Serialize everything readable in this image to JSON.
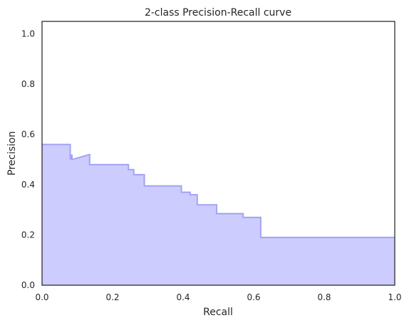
{
  "chart_data": {
    "type": "area",
    "title": "2-class Precision-Recall curve",
    "xlabel": "Recall",
    "ylabel": "Precision",
    "xlim": [
      0.0,
      1.0
    ],
    "ylim": [
      0.0,
      1.05
    ],
    "x_ticks": [
      0.0,
      0.2,
      0.4,
      0.6,
      0.8,
      1.0
    ],
    "y_ticks": [
      0.0,
      0.2,
      0.4,
      0.6,
      0.8,
      1.0
    ],
    "x_tick_labels": [
      "0.0",
      "0.2",
      "0.4",
      "0.6",
      "0.8",
      "1.0"
    ],
    "y_tick_labels": [
      "0.0",
      "0.2",
      "0.4",
      "0.6",
      "0.8",
      "1.0"
    ],
    "grid": false,
    "step": "post",
    "fill_color": "#ccccff",
    "line_color": "#a3a3f5",
    "series": [
      {
        "recall": [
          1.0,
          0.62,
          0.62,
          0.57,
          0.57,
          0.495,
          0.495,
          0.44,
          0.44,
          0.42,
          0.42,
          0.395,
          0.395,
          0.29,
          0.29,
          0.26,
          0.26,
          0.245,
          0.245,
          0.135,
          0.135,
          0.085,
          0.085,
          0.08,
          0.08,
          0.0
        ],
        "precision": [
          0.19,
          0.19,
          0.27,
          0.27,
          0.285,
          0.285,
          0.32,
          0.32,
          0.36,
          0.36,
          0.37,
          0.37,
          0.395,
          0.395,
          0.44,
          0.44,
          0.46,
          0.46,
          0.48,
          0.48,
          0.52,
          0.52,
          0.5,
          0.5,
          0.56,
          0.56
        ]
      }
    ]
  }
}
